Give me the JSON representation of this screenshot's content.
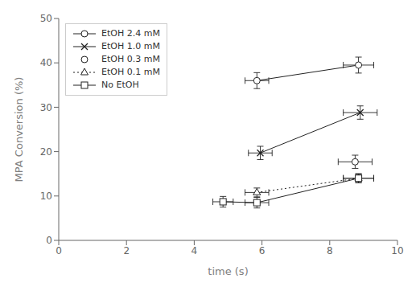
{
  "chart_data": {
    "type": "line",
    "xlabel": "time (s)",
    "ylabel": "MPA Conversion (%)",
    "xlim": [
      0,
      10
    ],
    "ylim": [
      0,
      50
    ],
    "xticks": [
      0,
      2,
      4,
      6,
      8,
      10
    ],
    "yticks": [
      0,
      10,
      20,
      30,
      40,
      50
    ],
    "grid": false,
    "legend": "upper left",
    "color": "#222222",
    "series": [
      {
        "name": "EtOH 2.4 mM",
        "line_style": "solid",
        "marker": "circle",
        "x": [
          5.85,
          8.85
        ],
        "values": [
          36.0,
          39.5
        ],
        "xerr": [
          0.35,
          0.45
        ],
        "yerr": [
          1.8,
          1.8
        ]
      },
      {
        "name": "EtOH 1.0 mM",
        "line_style": "solid",
        "marker": "x",
        "x": [
          5.95,
          8.9
        ],
        "values": [
          19.7,
          28.8
        ],
        "xerr": [
          0.35,
          0.5
        ],
        "yerr": [
          1.5,
          1.5
        ]
      },
      {
        "name": "EtOH 0.3 mM",
        "line_style": "none",
        "marker": "circle",
        "x": [
          8.75
        ],
        "values": [
          17.7
        ],
        "xerr": [
          0.5
        ],
        "yerr": [
          1.5
        ]
      },
      {
        "name": "EtOH 0.1 mM",
        "line_style": "dotted",
        "marker": "triangle",
        "x": [
          5.85,
          8.85
        ],
        "values": [
          10.8,
          14.0
        ],
        "xerr": [
          0.35,
          0.45
        ],
        "yerr": [
          1.0,
          1.0
        ]
      },
      {
        "name": "No EtOH",
        "line_style": "solid",
        "marker": "square",
        "x": [
          4.85,
          5.85,
          8.85
        ],
        "values": [
          8.7,
          8.5,
          14.0
        ],
        "xerr": [
          0.3,
          0.35,
          0.45
        ],
        "yerr": [
          1.2,
          1.2,
          1.0
        ]
      }
    ]
  }
}
